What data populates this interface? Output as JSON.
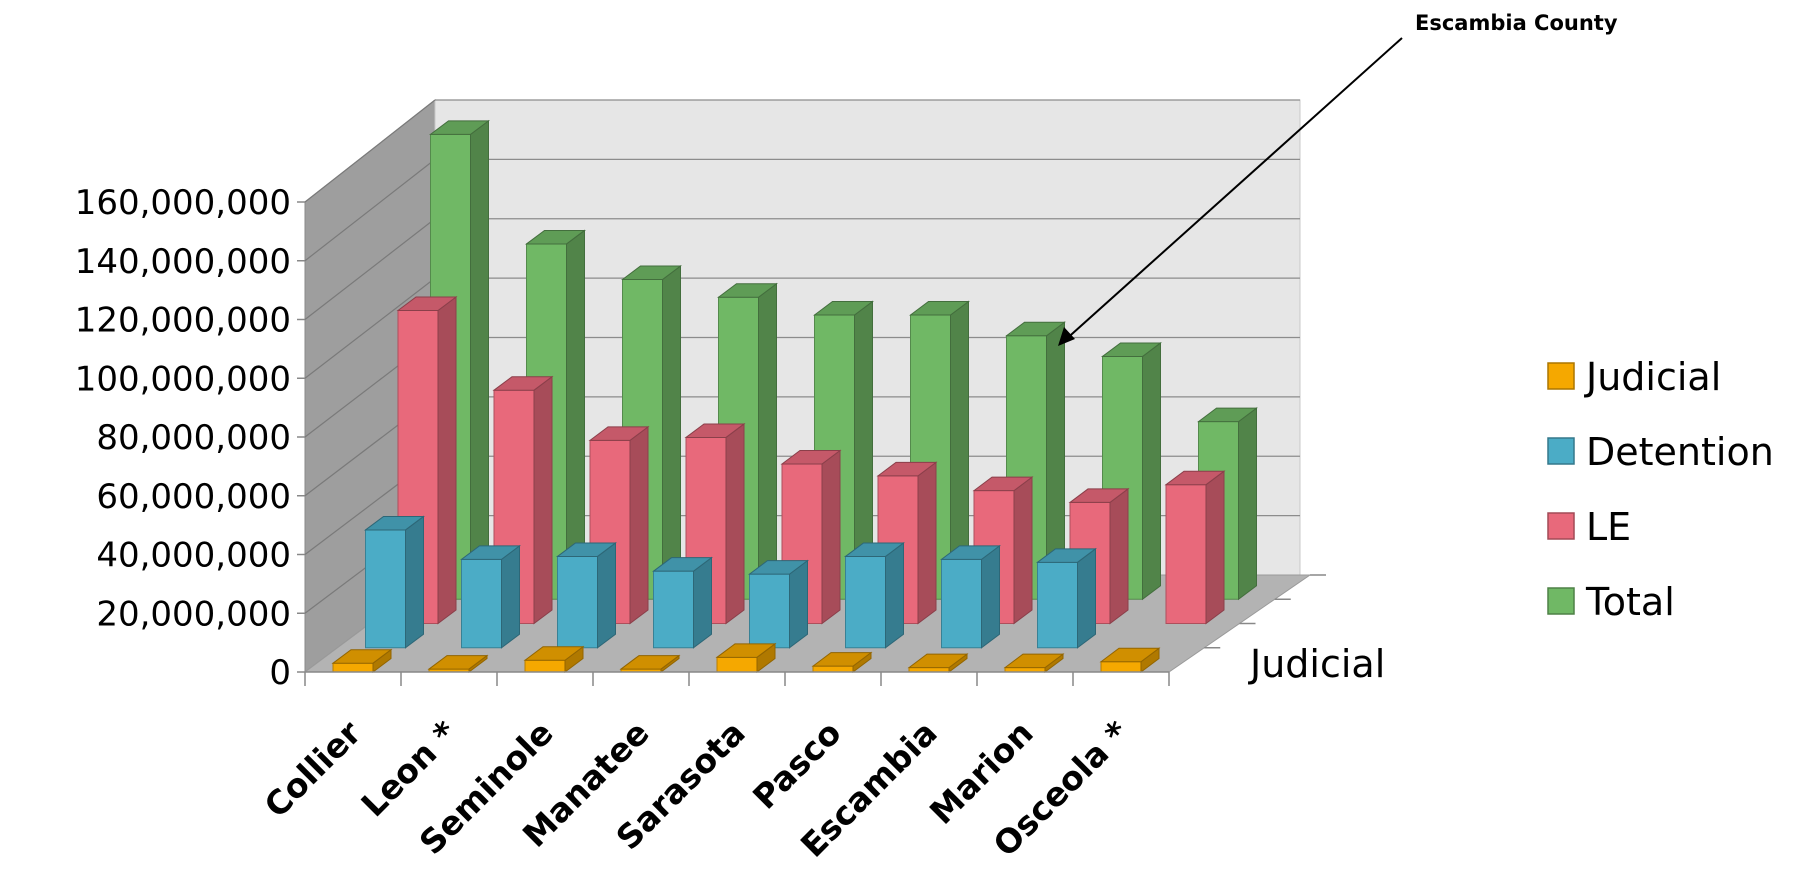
{
  "chart_data": {
    "type": "bar",
    "style": "3d-clustered-depth",
    "categories": [
      "Collier",
      "Leon *",
      "Seminole",
      "Manatee",
      "Sarasota",
      "Pasco",
      "Escambia",
      "Marion",
      "Osceola *"
    ],
    "series": [
      {
        "name": "Judicial",
        "color": "#F5A800",
        "values": [
          3000000,
          1000000,
          4000000,
          1000000,
          5000000,
          2000000,
          1500000,
          1500000,
          3500000
        ]
      },
      {
        "name": "Detention",
        "color": "#4BACC6",
        "values": [
          40000000,
          30000000,
          31000000,
          26000000,
          25000000,
          31000000,
          30000000,
          29000000,
          null
        ]
      },
      {
        "name": "LE",
        "color": "#E8697B",
        "values": [
          106000000,
          79000000,
          62000000,
          63000000,
          54000000,
          50000000,
          45000000,
          41000000,
          47000000
        ]
      },
      {
        "name": "Total",
        "color": "#70B865",
        "values": [
          157000000,
          120000000,
          108000000,
          102000000,
          96000000,
          96000000,
          89000000,
          82000000,
          60000000
        ]
      }
    ],
    "yticks": [
      "0",
      "20,000,000",
      "40,000,000",
      "60,000,000",
      "80,000,000",
      "100,000,000",
      "120,000,000",
      "140,000,000",
      "160,000,000"
    ],
    "ylim": [
      0,
      160000000
    ],
    "depth_label": "Judicial",
    "annotation": "Escambia County",
    "legend_position": "right",
    "grid": true
  }
}
